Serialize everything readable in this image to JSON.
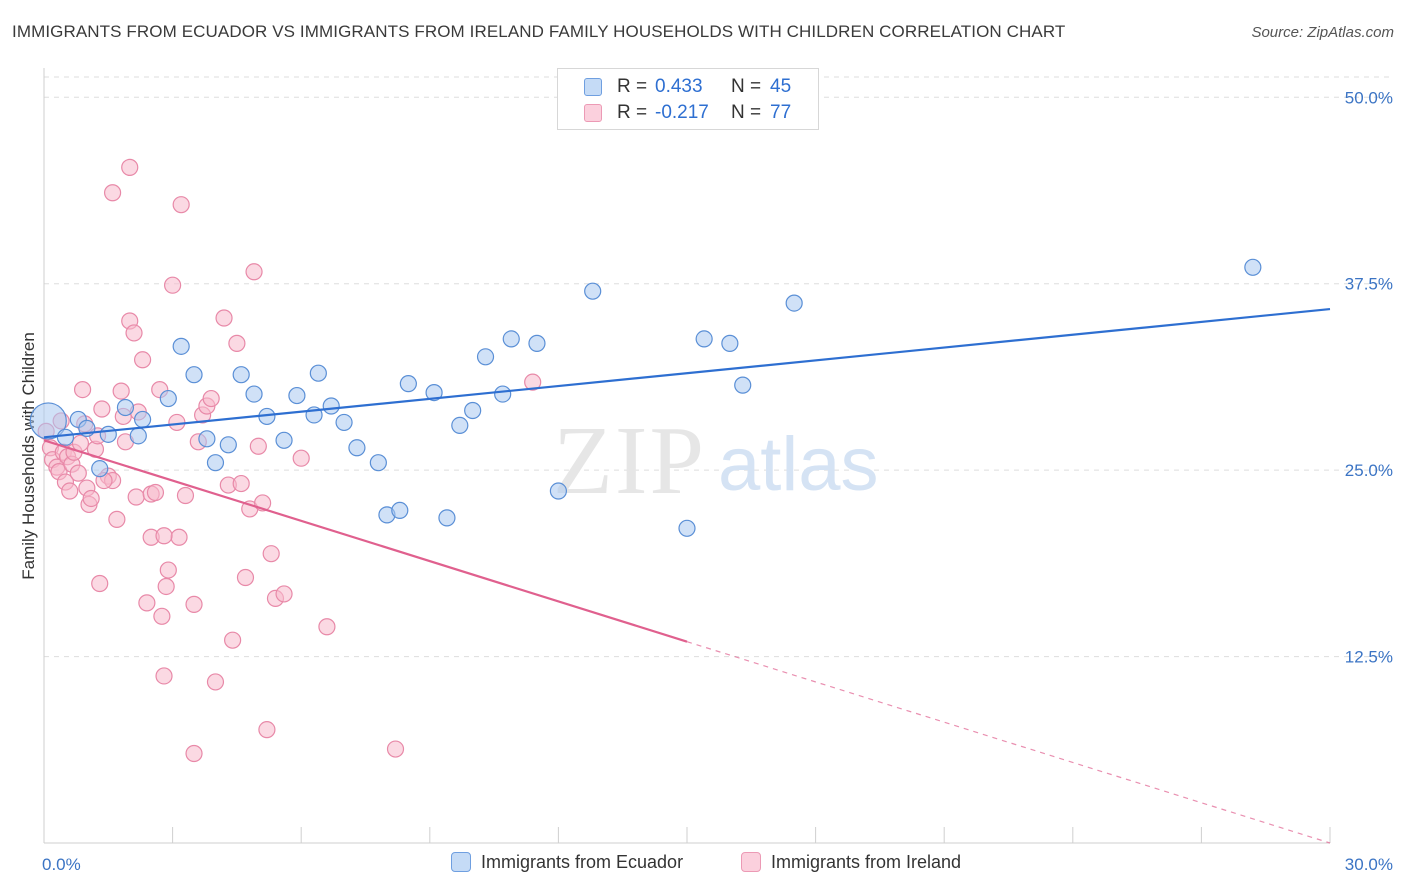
{
  "title": "IMMIGRANTS FROM ECUADOR VS IMMIGRANTS FROM IRELAND FAMILY HOUSEHOLDS WITH CHILDREN CORRELATION CHART",
  "source": "Source: ZipAtlas.com",
  "watermark": {
    "zip": "ZIP",
    "atlas": "atlas"
  },
  "legend": {
    "rows": [
      {
        "r_label": "R =",
        "r_value": "0.433",
        "n_label": "N =",
        "n_value": "45"
      },
      {
        "r_label": "R =",
        "r_value": "-0.217",
        "n_label": "N =",
        "n_value": "77"
      }
    ]
  },
  "colors": {
    "ecuador_fill": "#a9c8f0",
    "ecuador_stroke": "#5a8fd6",
    "ecuador_line": "#2e6fd1",
    "ireland_fill": "#f7b9cc",
    "ireland_stroke": "#e889a8",
    "ireland_line": "#e0608e",
    "tick_text": "#3b74c4",
    "grid": "#dddddd"
  },
  "chart_data": {
    "type": "scatter",
    "xlabel": "",
    "ylabel": "Family Households with Children",
    "xlim": [
      0,
      30
    ],
    "ylim": [
      0,
      52.5
    ],
    "x_tick_labels": [
      "0.0%",
      "30.0%"
    ],
    "y_ticks": [
      12.5,
      25.0,
      37.5,
      50.0
    ],
    "y_tick_labels": [
      "12.5%",
      "25.0%",
      "37.5%",
      "50.0%"
    ],
    "grid": true,
    "legend_position": "top-center",
    "series": [
      {
        "name": "Immigrants from Ecuador",
        "trend": {
          "x0": 0,
          "y0": 27.2,
          "x1": 30,
          "y1": 35.8
        },
        "points": [
          [
            0.1,
            28.3
          ],
          [
            0.5,
            27.2
          ],
          [
            0.8,
            28.4
          ],
          [
            1.0,
            27.8
          ],
          [
            1.3,
            25.1
          ],
          [
            1.5,
            27.4
          ],
          [
            1.9,
            29.2
          ],
          [
            2.3,
            28.4
          ],
          [
            2.2,
            27.3
          ],
          [
            2.9,
            29.8
          ],
          [
            3.2,
            33.3
          ],
          [
            3.5,
            31.4
          ],
          [
            3.8,
            27.1
          ],
          [
            4.0,
            25.5
          ],
          [
            4.3,
            26.7
          ],
          [
            4.6,
            31.4
          ],
          [
            4.9,
            30.1
          ],
          [
            5.2,
            28.6
          ],
          [
            5.6,
            27.0
          ],
          [
            5.9,
            30.0
          ],
          [
            6.3,
            28.7
          ],
          [
            6.4,
            31.5
          ],
          [
            6.7,
            29.3
          ],
          [
            7.0,
            28.2
          ],
          [
            7.3,
            26.5
          ],
          [
            7.8,
            25.5
          ],
          [
            8.0,
            22.0
          ],
          [
            8.3,
            22.3
          ],
          [
            8.5,
            30.8
          ],
          [
            9.1,
            30.2
          ],
          [
            9.4,
            21.8
          ],
          [
            9.7,
            28.0
          ],
          [
            10.0,
            29.0
          ],
          [
            10.3,
            32.6
          ],
          [
            10.7,
            30.1
          ],
          [
            10.9,
            33.8
          ],
          [
            11.5,
            33.5
          ],
          [
            12.0,
            23.6
          ],
          [
            12.8,
            37.0
          ],
          [
            15.0,
            21.1
          ],
          [
            15.4,
            33.8
          ],
          [
            16.0,
            33.5
          ],
          [
            16.3,
            30.7
          ],
          [
            17.5,
            36.2
          ],
          [
            28.2,
            38.6
          ]
        ]
      },
      {
        "name": "Immigrants from Ireland",
        "trend": {
          "x0": 0,
          "y0": 27.0,
          "x1": 15.0,
          "y1": 13.5
        },
        "trend_dashed": {
          "x0": 15.0,
          "y0": 13.5,
          "x1": 30,
          "y1": 0
        },
        "points": [
          [
            0.05,
            27.6
          ],
          [
            0.15,
            26.5
          ],
          [
            0.2,
            25.7
          ],
          [
            0.3,
            25.2
          ],
          [
            0.35,
            24.9
          ],
          [
            0.4,
            28.3
          ],
          [
            0.45,
            26.2
          ],
          [
            0.5,
            24.2
          ],
          [
            0.55,
            25.9
          ],
          [
            0.6,
            23.6
          ],
          [
            0.65,
            25.4
          ],
          [
            0.7,
            26.2
          ],
          [
            0.8,
            24.8
          ],
          [
            0.85,
            26.8
          ],
          [
            0.9,
            30.4
          ],
          [
            0.95,
            28.1
          ],
          [
            1.0,
            23.8
          ],
          [
            1.05,
            22.7
          ],
          [
            1.1,
            23.1
          ],
          [
            1.2,
            26.4
          ],
          [
            1.25,
            27.3
          ],
          [
            1.3,
            17.4
          ],
          [
            1.35,
            29.1
          ],
          [
            1.5,
            24.6
          ],
          [
            1.6,
            24.3
          ],
          [
            1.7,
            21.7
          ],
          [
            1.8,
            30.3
          ],
          [
            1.85,
            28.6
          ],
          [
            1.9,
            26.9
          ],
          [
            2.0,
            45.3
          ],
          [
            1.6,
            43.6
          ],
          [
            2.0,
            35.0
          ],
          [
            2.1,
            34.2
          ],
          [
            2.15,
            23.2
          ],
          [
            2.2,
            28.9
          ],
          [
            2.3,
            32.4
          ],
          [
            2.4,
            16.1
          ],
          [
            2.5,
            20.5
          ],
          [
            2.5,
            23.4
          ],
          [
            2.6,
            23.5
          ],
          [
            2.7,
            30.4
          ],
          [
            2.75,
            15.2
          ],
          [
            2.8,
            11.2
          ],
          [
            2.85,
            17.2
          ],
          [
            2.9,
            18.3
          ],
          [
            3.0,
            37.4
          ],
          [
            3.1,
            28.2
          ],
          [
            3.15,
            20.5
          ],
          [
            3.2,
            42.8
          ],
          [
            3.3,
            23.3
          ],
          [
            3.5,
            6.0
          ],
          [
            3.6,
            26.9
          ],
          [
            3.7,
            28.7
          ],
          [
            3.8,
            29.3
          ],
          [
            3.9,
            29.8
          ],
          [
            4.0,
            10.8
          ],
          [
            4.2,
            35.2
          ],
          [
            4.3,
            24.0
          ],
          [
            4.4,
            13.6
          ],
          [
            4.5,
            33.5
          ],
          [
            4.6,
            24.1
          ],
          [
            4.7,
            17.8
          ],
          [
            4.8,
            22.4
          ],
          [
            4.9,
            38.3
          ],
          [
            5.0,
            26.6
          ],
          [
            5.1,
            22.8
          ],
          [
            5.2,
            7.6
          ],
          [
            5.3,
            19.4
          ],
          [
            5.4,
            16.4
          ],
          [
            5.6,
            16.7
          ],
          [
            6.0,
            25.8
          ],
          [
            6.6,
            14.5
          ],
          [
            8.2,
            6.3
          ],
          [
            11.4,
            30.9
          ],
          [
            2.8,
            20.6
          ],
          [
            1.4,
            24.3
          ],
          [
            3.5,
            16.0
          ]
        ]
      }
    ]
  },
  "bottom_legend": {
    "items": [
      "Immigrants from Ecuador",
      "Immigrants from Ireland"
    ]
  }
}
